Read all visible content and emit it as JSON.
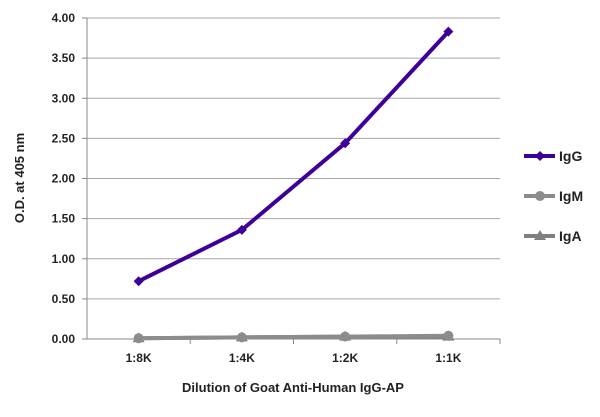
{
  "chart_data": {
    "type": "line",
    "title": "",
    "xlabel": "Dilution of Goat Anti-Human IgG-AP",
    "ylabel": "O.D. at 405 nm",
    "categories": [
      "1:8K",
      "1:4K",
      "1:2K",
      "1:1K"
    ],
    "ylim": [
      0,
      4
    ],
    "yticks": [
      "0.00",
      "0.50",
      "1.00",
      "1.50",
      "2.00",
      "2.50",
      "3.00",
      "3.50",
      "4.00"
    ],
    "grid": "horizontal",
    "legend_position": "right",
    "series": [
      {
        "name": "IgG",
        "values": [
          0.72,
          1.36,
          2.44,
          3.83
        ],
        "color": "#3d0099",
        "marker": "diamond"
      },
      {
        "name": "IgM",
        "values": [
          0.01,
          0.02,
          0.03,
          0.04
        ],
        "color": "#8c8c8c",
        "marker": "circle"
      },
      {
        "name": "IgA",
        "values": [
          0.01,
          0.02,
          0.03,
          0.03
        ],
        "color": "#808080",
        "marker": "triangle"
      }
    ]
  }
}
